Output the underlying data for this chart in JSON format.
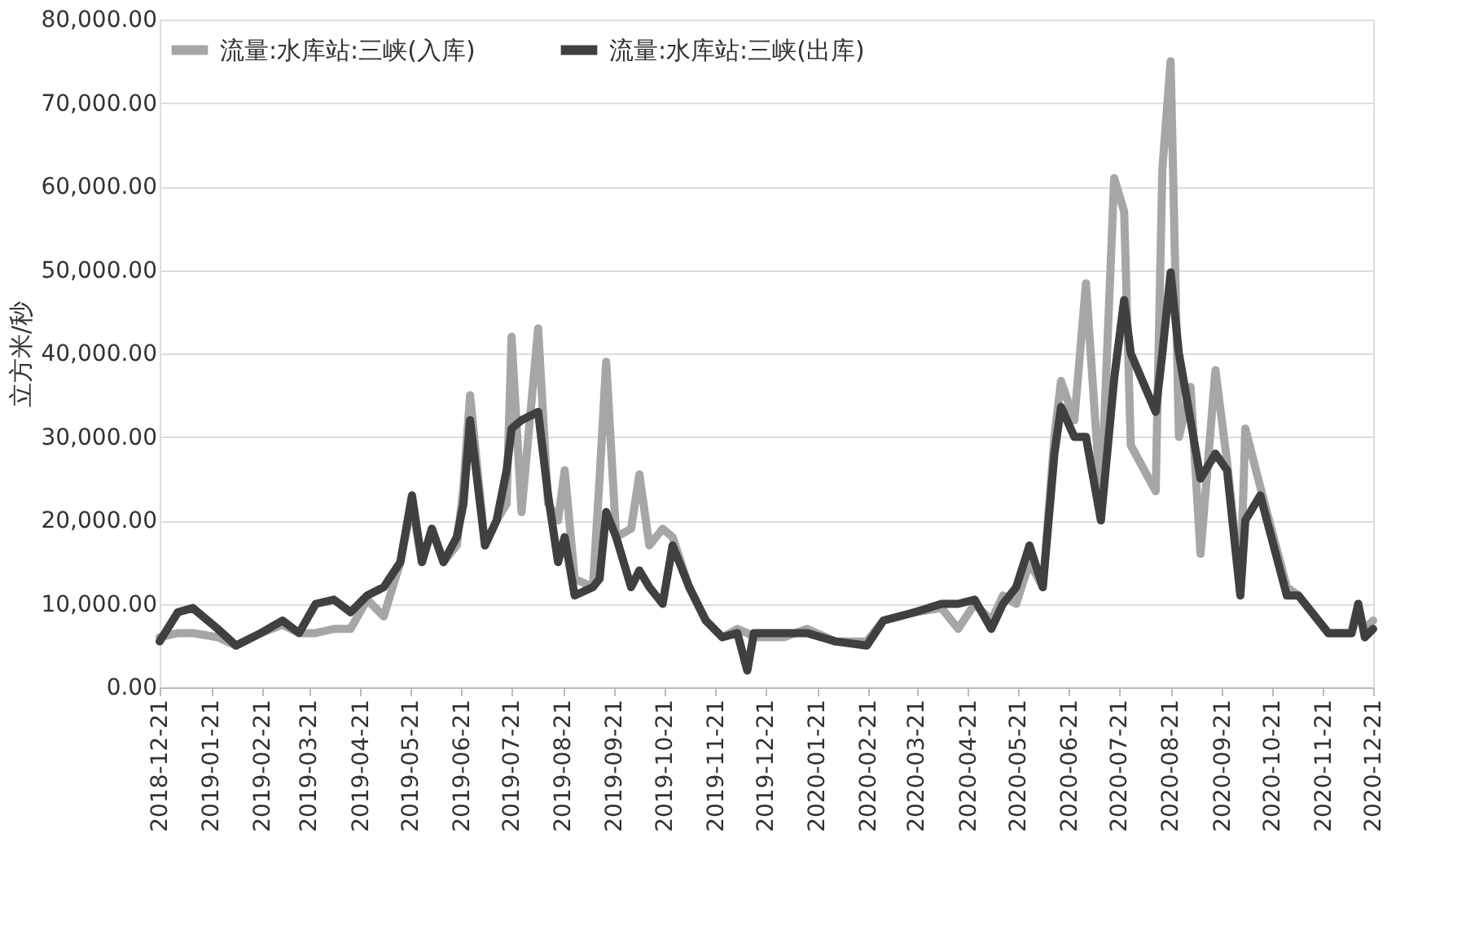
{
  "chart_data": {
    "type": "line",
    "ylabel": "立方米/秒",
    "xlim": [
      "2018-12-21",
      "2020-12-21"
    ],
    "xticks": [
      "2018-12-21",
      "2019-01-21",
      "2019-02-21",
      "2019-03-21",
      "2019-04-21",
      "2019-05-21",
      "2019-06-21",
      "2019-07-21",
      "2019-08-21",
      "2019-09-21",
      "2019-10-21",
      "2019-11-21",
      "2019-12-21",
      "2020-01-21",
      "2020-02-21",
      "2020-03-21",
      "2020-04-21",
      "2020-05-21",
      "2020-06-21",
      "2020-07-21",
      "2020-08-21",
      "2020-09-21",
      "2020-10-21",
      "2020-11-21",
      "2020-12-21"
    ],
    "ylim": [
      0,
      80000
    ],
    "yticks": [
      {
        "value": 0,
        "label": "0.00"
      },
      {
        "value": 10000,
        "label": "10,000.00"
      },
      {
        "value": 20000,
        "label": "20,000.00"
      },
      {
        "value": 30000,
        "label": "30,000.00"
      },
      {
        "value": 40000,
        "label": "40,000.00"
      },
      {
        "value": 50000,
        "label": "50,000.00"
      },
      {
        "value": 60000,
        "label": "60,000.00"
      },
      {
        "value": 70000,
        "label": "70,000.00"
      },
      {
        "value": 80000,
        "label": "80,000.00"
      }
    ],
    "grid": "y",
    "legend": "top left",
    "line_style": "solid",
    "marker": "none",
    "x": [
      "2018-12-21",
      "2019-01-01",
      "2019-01-10",
      "2019-01-25",
      "2019-02-05",
      "2019-02-20",
      "2019-03-05",
      "2019-03-15",
      "2019-03-25",
      "2019-04-05",
      "2019-04-15",
      "2019-04-25",
      "2019-05-05",
      "2019-05-15",
      "2019-05-22",
      "2019-05-28",
      "2019-06-03",
      "2019-06-10",
      "2019-06-18",
      "2019-06-22",
      "2019-06-26",
      "2019-07-05",
      "2019-07-12",
      "2019-07-18",
      "2019-07-21",
      "2019-07-27",
      "2019-08-06",
      "2019-08-12",
      "2019-08-18",
      "2019-08-22",
      "2019-08-28",
      "2019-09-08",
      "2019-09-12",
      "2019-09-16",
      "2019-09-22",
      "2019-10-01",
      "2019-10-06",
      "2019-10-12",
      "2019-10-20",
      "2019-10-26",
      "2019-11-05",
      "2019-11-15",
      "2019-11-25",
      "2019-12-04",
      "2019-12-10",
      "2019-12-14",
      "2020-01-01",
      "2020-01-15",
      "2020-02-01",
      "2020-02-20",
      "2020-03-01",
      "2020-03-20",
      "2020-04-05",
      "2020-04-15",
      "2020-04-25",
      "2020-05-05",
      "2020-05-12",
      "2020-05-20",
      "2020-05-28",
      "2020-06-05",
      "2020-06-12",
      "2020-06-16",
      "2020-06-24",
      "2020-07-01",
      "2020-07-10",
      "2020-07-18",
      "2020-07-24",
      "2020-07-28",
      "2020-08-12",
      "2020-08-16",
      "2020-08-21",
      "2020-08-26",
      "2020-09-02",
      "2020-09-08",
      "2020-09-17",
      "2020-09-24",
      "2020-10-02",
      "2020-10-05",
      "2020-10-14",
      "2020-10-30",
      "2020-11-06",
      "2020-11-24",
      "2020-12-08",
      "2020-12-12",
      "2020-12-16",
      "2020-12-21"
    ],
    "series": [
      {
        "name": "流量:水库站:三峡(入库)",
        "color": "#a6a6a6",
        "values": [
          6000,
          6500,
          6500,
          6000,
          5000,
          6500,
          7500,
          6500,
          6500,
          7000,
          7000,
          10500,
          8500,
          15000,
          22000,
          15000,
          19000,
          15000,
          17000,
          24000,
          35000,
          17000,
          20000,
          22000,
          42000,
          21000,
          43000,
          22000,
          20000,
          26000,
          13000,
          12000,
          25000,
          39000,
          18000,
          19000,
          25500,
          17000,
          19000,
          18000,
          12000,
          8000,
          6000,
          7000,
          6500,
          6000,
          6000,
          7000,
          5500,
          5500,
          8000,
          9000,
          9500,
          7000,
          10000,
          8000,
          11000,
          10000,
          15000,
          12000,
          30000,
          36700,
          32000,
          48400,
          22000,
          61000,
          57000,
          29000,
          23500,
          62000,
          75000,
          30000,
          36000,
          16000,
          38000,
          27000,
          12000,
          31000,
          24000,
          12000,
          11000,
          6500,
          6500,
          9000,
          7000,
          8000
        ]
      },
      {
        "name": "流量:水库站:三峡(出库)",
        "color": "#404040",
        "values": [
          5500,
          9000,
          9500,
          7000,
          5000,
          6500,
          8000,
          6500,
          10000,
          10500,
          9000,
          11000,
          12000,
          15000,
          23000,
          15000,
          19000,
          15000,
          18000,
          22000,
          32000,
          17000,
          20000,
          26000,
          31000,
          32000,
          33000,
          23000,
          15000,
          18000,
          11000,
          12000,
          13000,
          21000,
          18000,
          12000,
          14000,
          12000,
          10000,
          17000,
          12000,
          8000,
          6000,
          6500,
          2000,
          6500,
          6500,
          6500,
          5500,
          5000,
          8000,
          9000,
          10000,
          10000,
          10500,
          7000,
          10000,
          12000,
          17000,
          12000,
          28000,
          33600,
          30000,
          30000,
          20000,
          37000,
          46400,
          40000,
          33000,
          40000,
          49700,
          40000,
          32000,
          25000,
          28000,
          26000,
          11000,
          20000,
          23000,
          11000,
          11000,
          6500,
          6500,
          10000,
          6000,
          7000
        ]
      }
    ]
  }
}
